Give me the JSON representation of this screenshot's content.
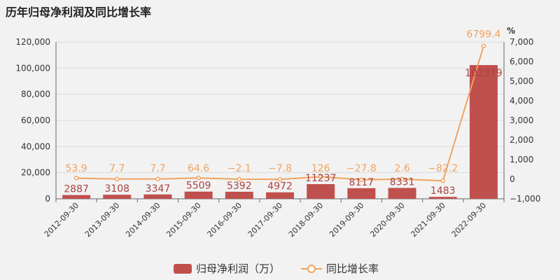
{
  "chart_data": {
    "type": "bar",
    "title": "历年归母净利润及同比增长率",
    "categories": [
      "2012-09-30",
      "2013-09-30",
      "2014-09-30",
      "2015-09-30",
      "2016-09-30",
      "2017-09-30",
      "2018-09-30",
      "2019-09-30",
      "2020-09-30",
      "2021-09-30",
      "2022-09-30"
    ],
    "series": [
      {
        "name": "归母净利润（万）",
        "type": "bar",
        "axis": "left",
        "color": "#c0504d",
        "values": [
          2887,
          3108,
          3347,
          5509,
          5392,
          4972,
          11237,
          8117,
          8331,
          1483,
          102339
        ],
        "labels": [
          "2887",
          "3108",
          "3347",
          "5509",
          "5392",
          "4972",
          "11237",
          "8117",
          "8331",
          "1483",
          "102339"
        ]
      },
      {
        "name": "同比增长率",
        "type": "line",
        "axis": "right",
        "color": "#f0a35e",
        "values": [
          53.9,
          7.7,
          7.7,
          64.6,
          -2.1,
          -7.8,
          126,
          -27.8,
          2.6,
          -82.2,
          6799.4
        ],
        "labels": [
          "53.9",
          "7.7",
          "7.7",
          "64.6",
          "−2.1",
          "−7.8",
          "126",
          "−27.8",
          "2.6",
          "−82.2",
          "6799.4"
        ]
      }
    ],
    "y_left": {
      "min": 0,
      "max": 120000,
      "ticks": [
        0,
        20000,
        40000,
        60000,
        80000,
        100000,
        120000
      ],
      "tick_labels": [
        "0",
        "20,000",
        "40,000",
        "60,000",
        "80,000",
        "100,000",
        "120,000"
      ]
    },
    "y_right": {
      "min": -1000,
      "max": 7000,
      "unit": "%",
      "ticks": [
        -1000,
        0,
        1000,
        2000,
        3000,
        4000,
        5000,
        6000,
        7000
      ],
      "tick_labels": [
        "−1,000",
        "0",
        "1,000",
        "2,000",
        "3,000",
        "4,000",
        "5,000",
        "6,000",
        "7,000"
      ]
    },
    "grid": true,
    "legend_position": "bottom"
  }
}
